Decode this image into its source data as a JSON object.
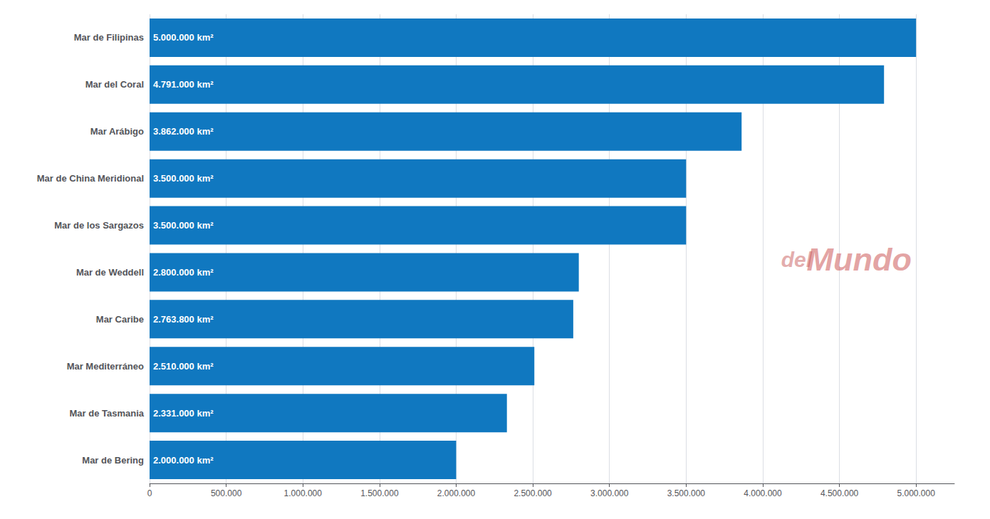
{
  "chart_data": {
    "type": "bar",
    "orientation": "horizontal",
    "categories": [
      "Mar de Bering",
      "Mar de Tasmania",
      "Mar Mediterráneo",
      "Mar Caribe",
      "Mar de Weddell",
      "Mar de los Sargazos",
      "Mar de China Meridional",
      "Mar Arábigo",
      "Mar del Coral",
      "Mar de Filipinas"
    ],
    "values": [
      2000000,
      2331000,
      2510000,
      2763800,
      2800000,
      3500000,
      3500000,
      3862000,
      4791000,
      5000000
    ],
    "value_labels": [
      "2.000.000 km²",
      "2.331.000 km²",
      "2.510.000 km²",
      "2.763.800 km²",
      "2.800.000 km²",
      "3.500.000 km²",
      "3.500.000 km²",
      "3.862.000 km²",
      "4.791.000 km²",
      "5.000.000 km²"
    ],
    "data_labels": true,
    "color": "#1078c0",
    "xlim": [
      0,
      5250000
    ],
    "xticks": [
      0,
      {
        "value": 500000,
        "label": "500.000"
      },
      {
        "value": 1000000,
        "label": "1.000.000"
      },
      {
        "value": 1500000,
        "label": "1.500.000"
      },
      {
        "value": 2000000,
        "label": "2.000.000"
      },
      {
        "value": 2500000,
        "label": "2.500.000"
      },
      {
        "value": 3000000,
        "label": "3.000.000"
      },
      {
        "value": 3500000,
        "label": "3.500.000"
      },
      {
        "value": 4000000,
        "label": "4.000.000"
      },
      {
        "value": 4500000,
        "label": "4.500.000"
      },
      {
        "value": 5000000,
        "label": "5.000.000"
      }
    ],
    "grid": true,
    "annotations": [
      "del",
      "Mundo"
    ]
  }
}
